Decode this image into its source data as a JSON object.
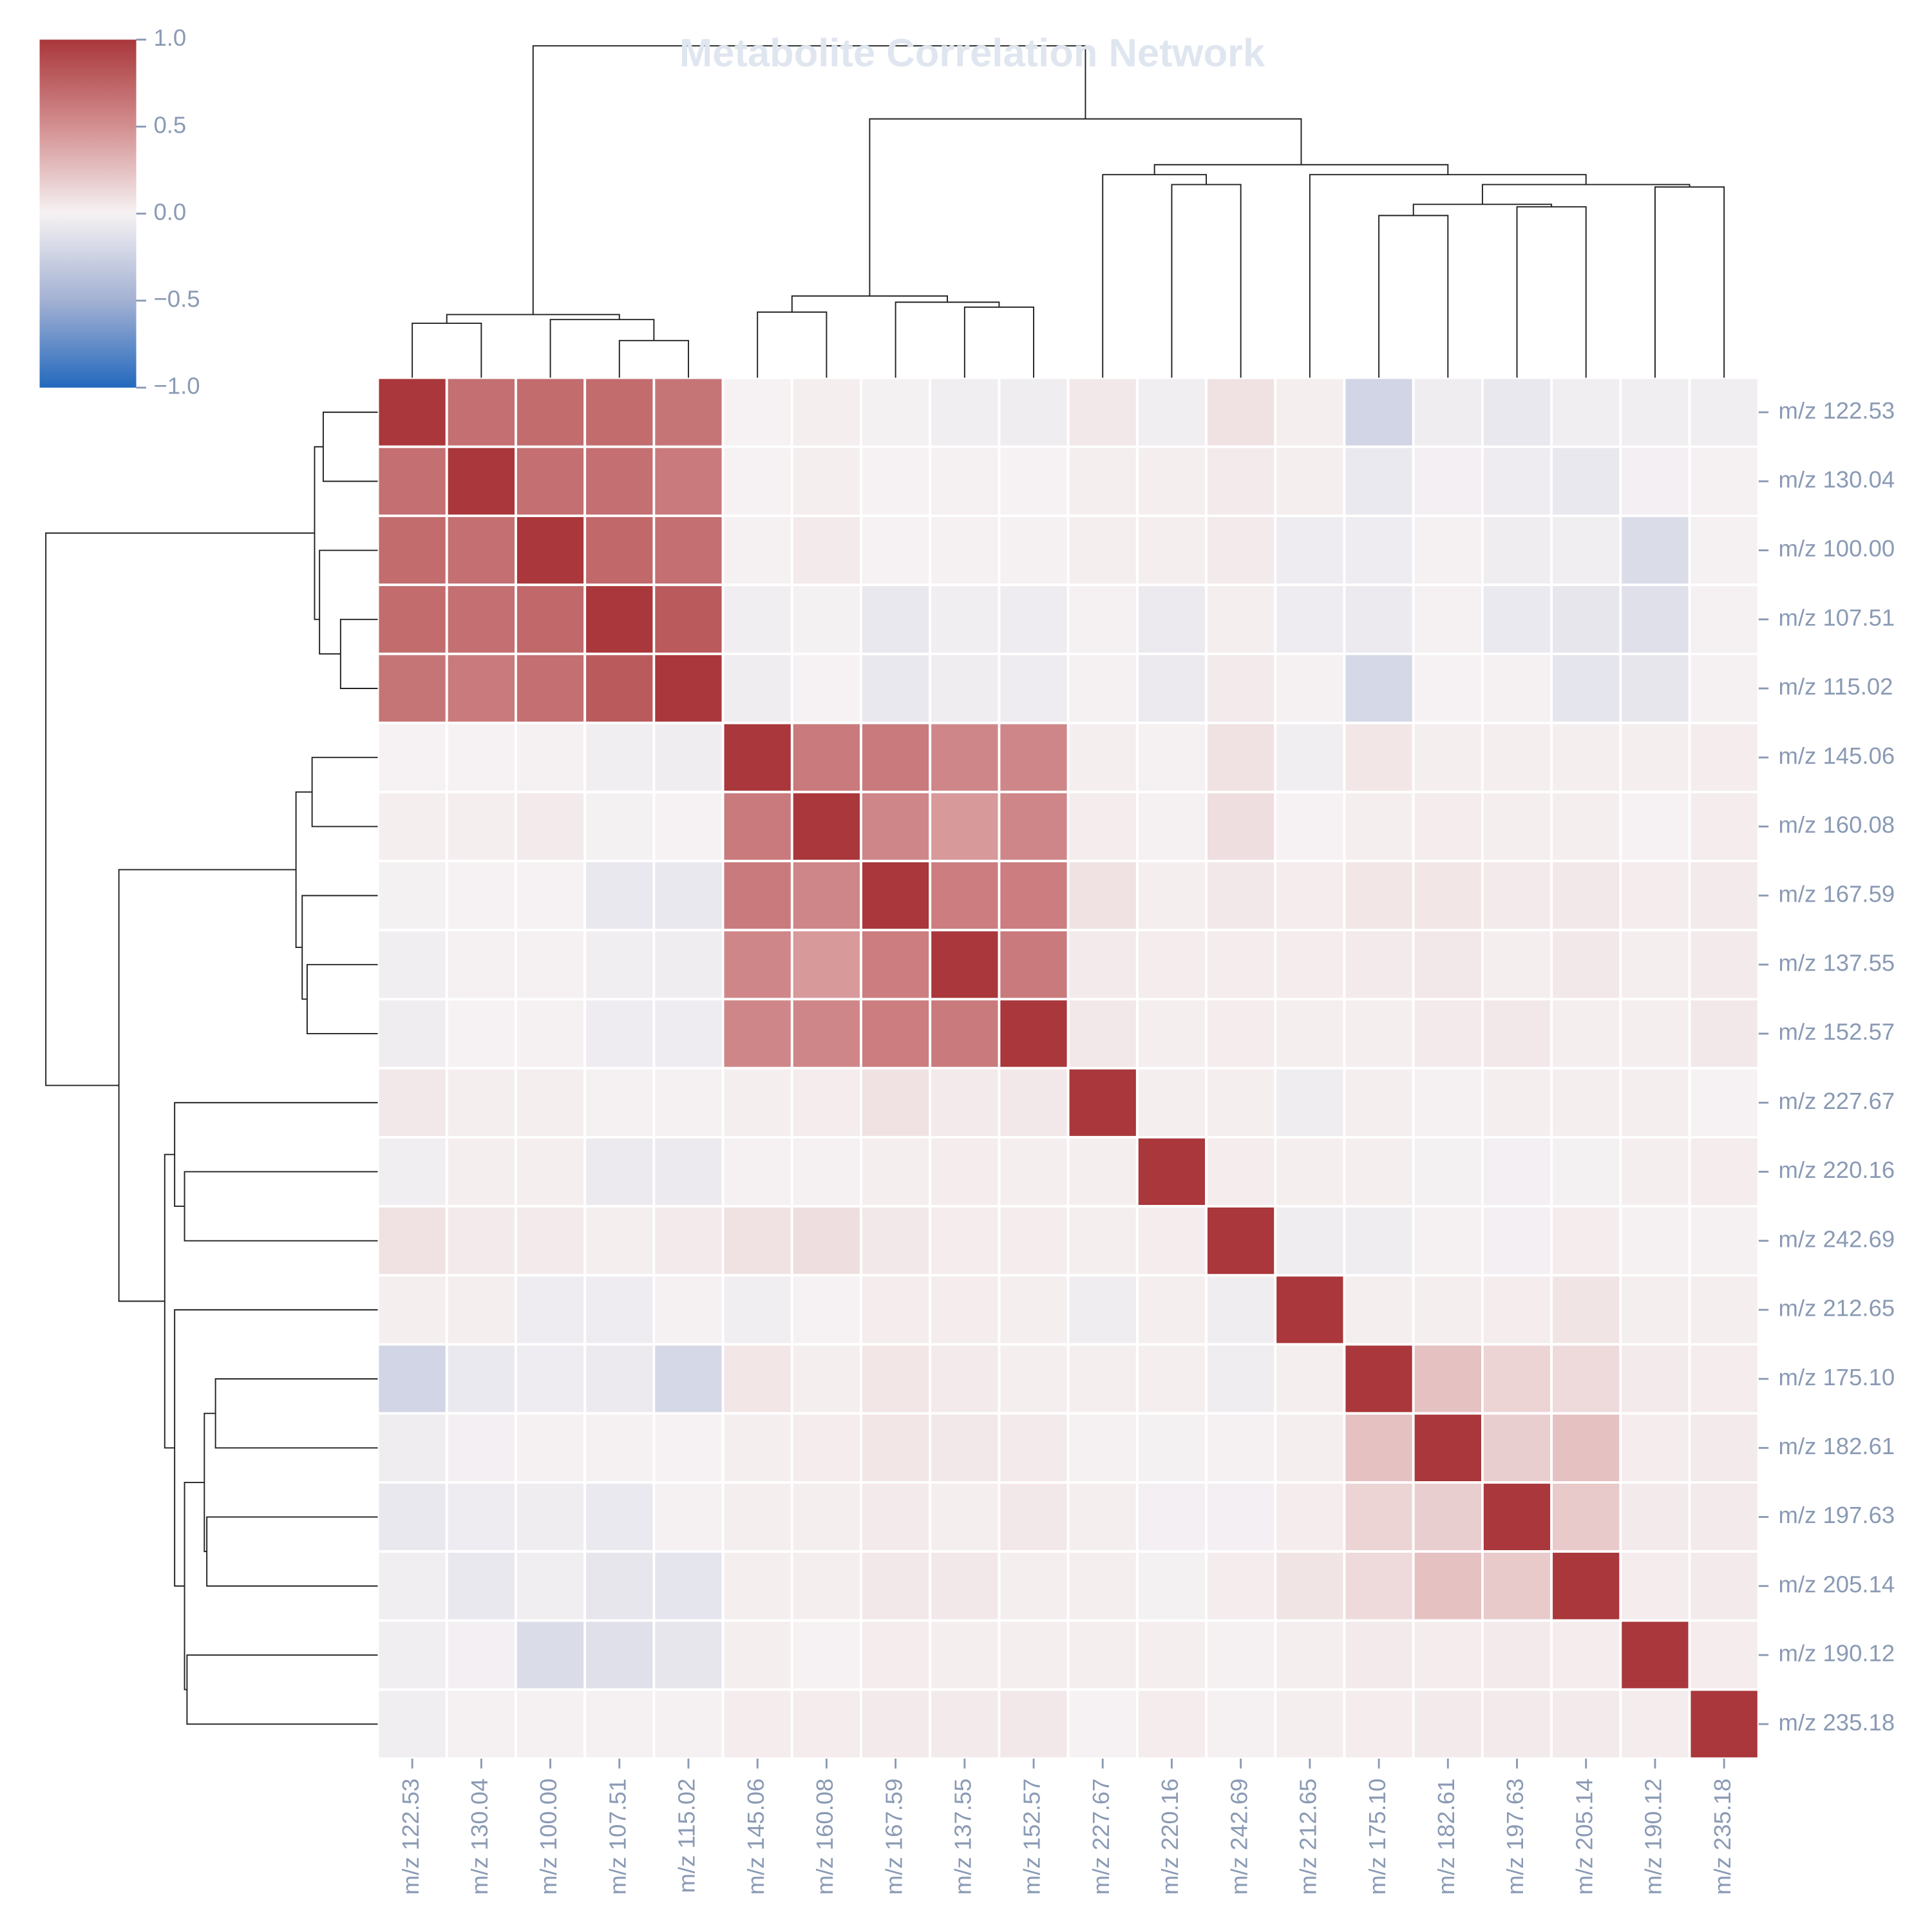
{
  "chart_data": {
    "type": "heatmap",
    "title": "Metabolite Correlation Network",
    "labels": [
      "m/z 122.53",
      "m/z 130.04",
      "m/z 100.00",
      "m/z 107.51",
      "m/z 115.02",
      "m/z 145.06",
      "m/z 160.08",
      "m/z 167.59",
      "m/z 137.55",
      "m/z 152.57",
      "m/z 227.67",
      "m/z 220.16",
      "m/z 242.69",
      "m/z 212.65",
      "m/z 175.10",
      "m/z 182.61",
      "m/z 197.63",
      "m/z 205.14",
      "m/z 190.12",
      "m/z 235.18"
    ],
    "matrix": [
      [
        1,
        0.68,
        0.7,
        0.7,
        0.65,
        0,
        0.02,
        -0.01,
        -0.03,
        -0.04,
        0.05,
        -0.03,
        0.08,
        0.02,
        -0.22,
        -0.04,
        -0.08,
        -0.03,
        -0.03,
        -0.03
      ],
      [
        0.68,
        1,
        0.68,
        0.68,
        0.62,
        0,
        0.02,
        0,
        0.01,
        0,
        0.02,
        0.02,
        0.04,
        0.02,
        -0.07,
        -0.02,
        -0.05,
        -0.08,
        -0.02,
        0.01
      ],
      [
        0.7,
        0.68,
        1,
        0.72,
        0.68,
        0.01,
        0.04,
        0,
        0.01,
        0.01,
        0.02,
        0.02,
        0.04,
        -0.05,
        -0.05,
        0.01,
        -0.04,
        -0.03,
        -0.17,
        0.01
      ],
      [
        0.7,
        0.68,
        0.72,
        1,
        0.8,
        -0.03,
        -0.01,
        -0.08,
        -0.03,
        -0.05,
        0.01,
        -0.06,
        0.02,
        -0.05,
        -0.06,
        0.01,
        -0.07,
        -0.09,
        -0.14,
        0.01
      ],
      [
        0.65,
        0.62,
        0.68,
        0.8,
        1,
        -0.04,
        0,
        -0.08,
        -0.04,
        -0.05,
        0.01,
        -0.06,
        0.04,
        0.01,
        -0.2,
        0,
        0.01,
        -0.1,
        -0.09,
        0.01
      ],
      [
        0,
        0,
        0.01,
        -0.03,
        -0.04,
        1,
        0.62,
        0.62,
        0.55,
        0.55,
        0.02,
        0.01,
        0.08,
        -0.03,
        0.06,
        0.02,
        0.02,
        0.02,
        0.02,
        0.03
      ],
      [
        0.02,
        0.02,
        0.04,
        -0.01,
        0,
        0.62,
        1,
        0.55,
        0.45,
        0.55,
        0.03,
        0.01,
        0.1,
        0,
        0.02,
        0.03,
        0.02,
        0.02,
        0,
        0.03
      ],
      [
        -0.01,
        0,
        0,
        -0.08,
        -0.08,
        0.62,
        0.55,
        1,
        0.6,
        0.6,
        0.08,
        0.02,
        0.05,
        0.03,
        0.06,
        0.06,
        0.04,
        0.05,
        0.03,
        0.04
      ],
      [
        -0.03,
        0.01,
        0.01,
        -0.03,
        -0.04,
        0.55,
        0.45,
        0.6,
        1,
        0.62,
        0.04,
        0.03,
        0.03,
        0.03,
        0.04,
        0.05,
        0.02,
        0.05,
        0.02,
        0.04
      ],
      [
        -0.04,
        0,
        0.01,
        -0.05,
        -0.05,
        0.55,
        0.55,
        0.6,
        0.62,
        1,
        0.05,
        0.02,
        0.03,
        0.02,
        0.02,
        0.04,
        0.05,
        0.02,
        0.02,
        0.05
      ],
      [
        0.05,
        0.02,
        0.02,
        0.01,
        0.01,
        0.02,
        0.03,
        0.08,
        0.04,
        0.05,
        1,
        0.02,
        0.02,
        -0.04,
        0.02,
        0.01,
        0.02,
        0.02,
        0.02,
        0
      ],
      [
        -0.03,
        0.02,
        0.02,
        -0.06,
        -0.06,
        0.01,
        0.01,
        0.02,
        0.03,
        0.02,
        0.02,
        1,
        0.03,
        0.02,
        0.02,
        -0.01,
        -0.02,
        -0.01,
        0.02,
        0.03
      ],
      [
        0.08,
        0.04,
        0.04,
        0.02,
        0.04,
        0.08,
        0.1,
        0.05,
        0.03,
        0.03,
        0.02,
        0.03,
        1,
        -0.04,
        -0.04,
        0.01,
        -0.02,
        0.03,
        0.01,
        0.01
      ],
      [
        0.02,
        0.02,
        -0.05,
        -0.05,
        0.01,
        -0.03,
        0,
        0.03,
        0.03,
        0.02,
        -0.04,
        0.02,
        -0.04,
        1,
        0.02,
        0.02,
        0.03,
        0.07,
        0.02,
        0.02
      ],
      [
        -0.22,
        -0.07,
        -0.05,
        -0.06,
        -0.2,
        0.06,
        0.02,
        0.06,
        0.04,
        0.02,
        0.02,
        0.02,
        -0.04,
        0.02,
        1,
        0.25,
        0.15,
        0.12,
        0.04,
        0.03
      ],
      [
        -0.04,
        -0.02,
        0.01,
        0.01,
        0,
        0.02,
        0.03,
        0.06,
        0.05,
        0.04,
        0.01,
        -0.01,
        0.01,
        0.02,
        0.25,
        1,
        0.18,
        0.25,
        0.03,
        0.04
      ],
      [
        -0.08,
        -0.05,
        -0.04,
        -0.07,
        0.01,
        0.02,
        0.02,
        0.04,
        0.02,
        0.05,
        0.02,
        -0.02,
        -0.02,
        0.03,
        0.15,
        0.18,
        1,
        0.2,
        0.04,
        0.04
      ],
      [
        -0.03,
        -0.08,
        -0.03,
        -0.09,
        -0.1,
        0.02,
        0.02,
        0.05,
        0.05,
        0.02,
        0.02,
        -0.01,
        0.03,
        0.07,
        0.12,
        0.25,
        0.2,
        1,
        0.03,
        0.04
      ],
      [
        -0.03,
        -0.02,
        -0.17,
        -0.14,
        -0.09,
        0.02,
        0,
        0.03,
        0.02,
        0.02,
        0.02,
        0.02,
        0.01,
        0.02,
        0.04,
        0.03,
        0.04,
        0.03,
        1,
        0.03
      ],
      [
        -0.03,
        0.01,
        0.01,
        0.01,
        0.01,
        0.03,
        0.03,
        0.04,
        0.04,
        0.05,
        0,
        0.03,
        0.01,
        0.02,
        0.03,
        0.04,
        0.04,
        0.04,
        0.03,
        1
      ]
    ],
    "clim": [
      -1,
      1
    ],
    "cticks": [
      {
        "value": -1,
        "label": "−1.0"
      },
      {
        "value": -0.5,
        "label": "−0.5"
      },
      {
        "value": 0,
        "label": "0.0"
      },
      {
        "value": 0.5,
        "label": "0.5"
      },
      {
        "value": 1,
        "label": "1.0"
      }
    ],
    "colormap": [
      "#2369bd",
      "#a3b1d3",
      "#f6f2f3",
      "#d38f90",
      "#a9373b"
    ]
  }
}
